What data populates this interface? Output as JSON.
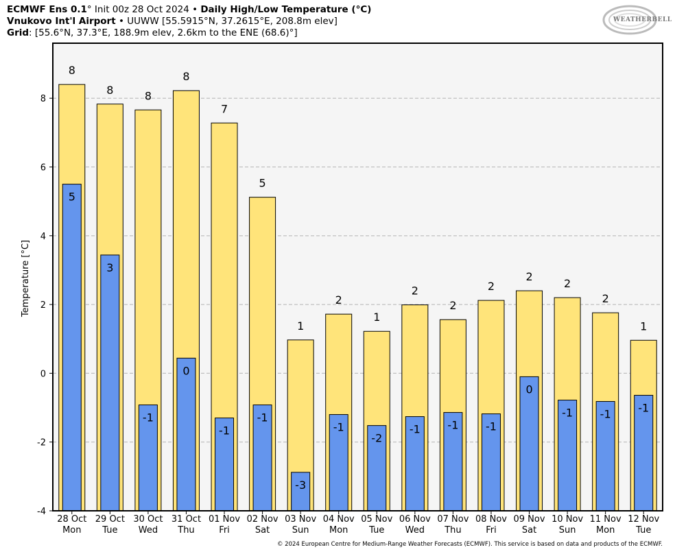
{
  "header": {
    "line1_bold1": "ECMWF Ens 0.1",
    "line1_deg": "°",
    "line1_init": " Init 00z 28 Oct 2024 • ",
    "line1_bold2": "Daily High/Low Temperature (°C)",
    "line2_bold": "Vnukovo Int'l Airport",
    "line2_rest": " • UUWW [55.5915°N, 37.2615°E, 208.8m elev]",
    "line3_bold": "Grid",
    "line3_rest": ": [55.6°N, 37.3°E, 188.9m elev, 2.6km to the ENE (68.6)°]"
  },
  "logo": {
    "text": "WEATHERBELL",
    "icon": "weatherbell-swirl-logo"
  },
  "credit": "© 2024 European Centre for Medium-Range Weather Forecasts (ECMWF). This service is based on data and products of the ECMWF.",
  "colors": {
    "high": "#ffe47a",
    "low": "#6495ed",
    "plot_bg": "#f5f5f5",
    "grid": "#b4b4b4"
  },
  "chart_data": {
    "type": "bar",
    "ylabel": "Temperature [°C]",
    "ylim": [
      -4,
      9.6
    ],
    "yticks": [
      -4,
      -2,
      0,
      2,
      4,
      6,
      8
    ],
    "grid": "horizontal dashed",
    "categories": [
      [
        "28 Oct",
        "Mon"
      ],
      [
        "29 Oct",
        "Tue"
      ],
      [
        "30 Oct",
        "Wed"
      ],
      [
        "31 Oct",
        "Thu"
      ],
      [
        "01 Nov",
        "Fri"
      ],
      [
        "02 Nov",
        "Sat"
      ],
      [
        "03 Nov",
        "Sun"
      ],
      [
        "04 Nov",
        "Mon"
      ],
      [
        "05 Nov",
        "Tue"
      ],
      [
        "06 Nov",
        "Wed"
      ],
      [
        "07 Nov",
        "Thu"
      ],
      [
        "08 Nov",
        "Fri"
      ],
      [
        "09 Nov",
        "Sat"
      ],
      [
        "10 Nov",
        "Sun"
      ],
      [
        "11 Nov",
        "Mon"
      ],
      [
        "12 Nov",
        "Tue"
      ]
    ],
    "series": [
      {
        "values": [
          8.4,
          7.83,
          7.66,
          8.22,
          7.28,
          5.12,
          0.97,
          1.72,
          1.22,
          1.99,
          1.56,
          2.12,
          2.4,
          2.2,
          1.76,
          0.96
        ],
        "labels": [
          "8",
          "8",
          "8",
          "8",
          "7",
          "5",
          "1",
          "2",
          "1",
          "2",
          "2",
          "2",
          "2",
          "2",
          "2",
          "1"
        ]
      },
      {
        "values": [
          5.5,
          3.44,
          -0.92,
          0.44,
          -1.3,
          -0.92,
          -2.88,
          -1.2,
          -1.52,
          -1.26,
          -1.14,
          -1.18,
          -0.1,
          -0.78,
          -0.82,
          -0.64
        ],
        "labels": [
          "5",
          "3",
          "-1",
          "0",
          "-1",
          "-1",
          "-3",
          "-1",
          "-2",
          "-1",
          "-1",
          "-1",
          "0",
          "-1",
          "-1",
          "-1"
        ]
      }
    ]
  }
}
